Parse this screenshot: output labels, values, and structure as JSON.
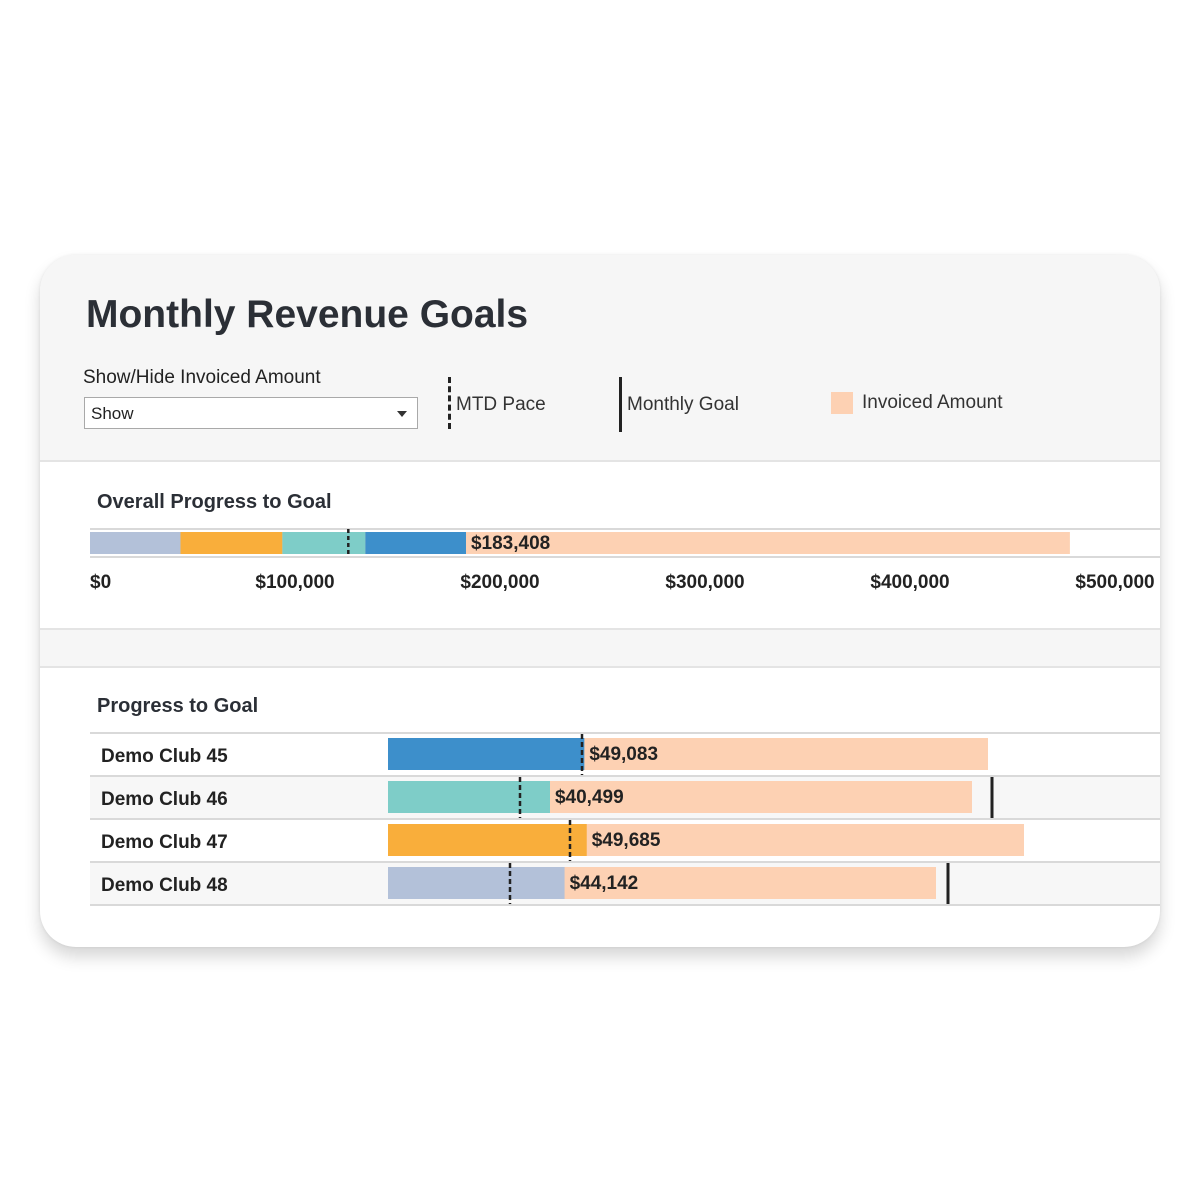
{
  "header": {
    "title": "Monthly Revenue Goals"
  },
  "filter": {
    "label": "Show/Hide Invoiced Amount",
    "value": "Show"
  },
  "legend": {
    "mtd_pace": "MTD Pace",
    "monthly_goal": "Monthly Goal",
    "invoiced_amount": "Invoiced Amount"
  },
  "colors": {
    "invoiced": "#fdd1b3",
    "club45": "#3d8fcb",
    "club46": "#7ecdc8",
    "club47": "#f9ae3b",
    "club48": "#b3c1d9",
    "marker": "#222222"
  },
  "chart_data": [
    {
      "type": "bar",
      "title": "Overall Progress to Goal",
      "orientation": "horizontal",
      "stacked": true,
      "x_ticks": [
        "$0",
        "$100,000",
        "$200,000",
        "$300,000",
        "$400,000",
        "$500,000"
      ],
      "xlim": [
        0,
        525000
      ],
      "segments": [
        {
          "club": "Demo Club 48",
          "value": 44142,
          "color": "#b3c1d9"
        },
        {
          "club": "Demo Club 47",
          "value": 49685,
          "color": "#f9ae3b"
        },
        {
          "club": "Demo Club 46",
          "value": 40499,
          "color": "#7ecdc8"
        },
        {
          "club": "Demo Club 45",
          "value": 49083,
          "color": "#3d8fcb"
        }
      ],
      "total": 183408,
      "total_label": "$183,408",
      "invoiced_amount": 478000,
      "mtd_pace": 126000
    },
    {
      "type": "bar",
      "title": "Progress to Goal",
      "orientation": "horizontal",
      "xlim": [
        0,
        190000
      ],
      "rows": [
        {
          "name": "Demo Club 45",
          "value": 49083,
          "label": "$49,083",
          "invoiced": 150000,
          "mtd_pace": 48500,
          "monthly_goal": null,
          "color": "#3d8fcb"
        },
        {
          "name": "Demo Club 46",
          "value": 40499,
          "label": "$40,499",
          "invoiced": 146000,
          "mtd_pace": 33000,
          "monthly_goal": 151000,
          "color": "#7ecdc8"
        },
        {
          "name": "Demo Club 47",
          "value": 49685,
          "label": "$49,685",
          "invoiced": 159000,
          "mtd_pace": 45500,
          "monthly_goal": null,
          "color": "#f9ae3b"
        },
        {
          "name": "Demo Club 48",
          "value": 44142,
          "label": "$44,142",
          "invoiced": 137000,
          "mtd_pace": 30500,
          "monthly_goal": 140000,
          "color": "#b3c1d9"
        }
      ]
    }
  ]
}
